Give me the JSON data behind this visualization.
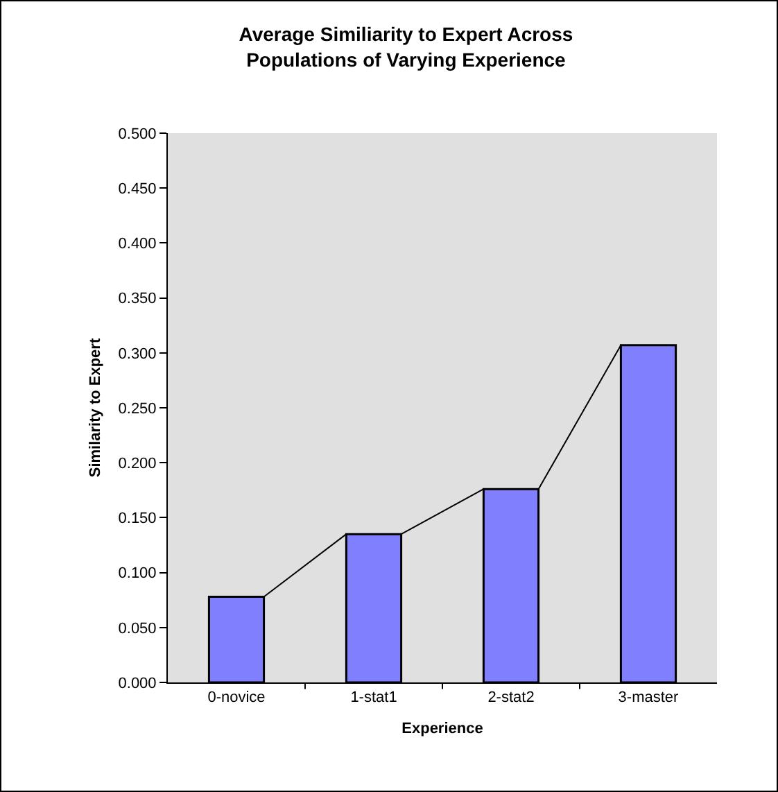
{
  "chart_data": {
    "type": "bar",
    "title": "Average Similiarity to Expert Across Populations of Varying Experience",
    "xlabel": "Experience",
    "ylabel": "Similarity to Expert",
    "categories": [
      "0-novice",
      "1-stat1",
      "2-stat2",
      "3-master"
    ],
    "series": [
      {
        "color": "#8080ff",
        "values": [
          0.078,
          0.135,
          0.176,
          0.307
        ]
      }
    ],
    "ylim": [
      0,
      0.5
    ],
    "yticks": [
      {
        "value": 0,
        "label": "0.000"
      },
      {
        "value": 0.05,
        "label": "0.050"
      },
      {
        "value": 0.1,
        "label": "0.100"
      },
      {
        "value": 0.15,
        "label": "0.150"
      },
      {
        "value": 0.2,
        "label": "0.200"
      },
      {
        "value": 0.25,
        "label": "0.250"
      },
      {
        "value": 0.3,
        "label": "0.300"
      },
      {
        "value": 0.35,
        "label": "0.350"
      },
      {
        "value": 0.4,
        "label": "0.400"
      },
      {
        "value": 0.45,
        "label": "0.450"
      },
      {
        "value": 0.5,
        "label": "0.500"
      }
    ],
    "grid": false
  }
}
